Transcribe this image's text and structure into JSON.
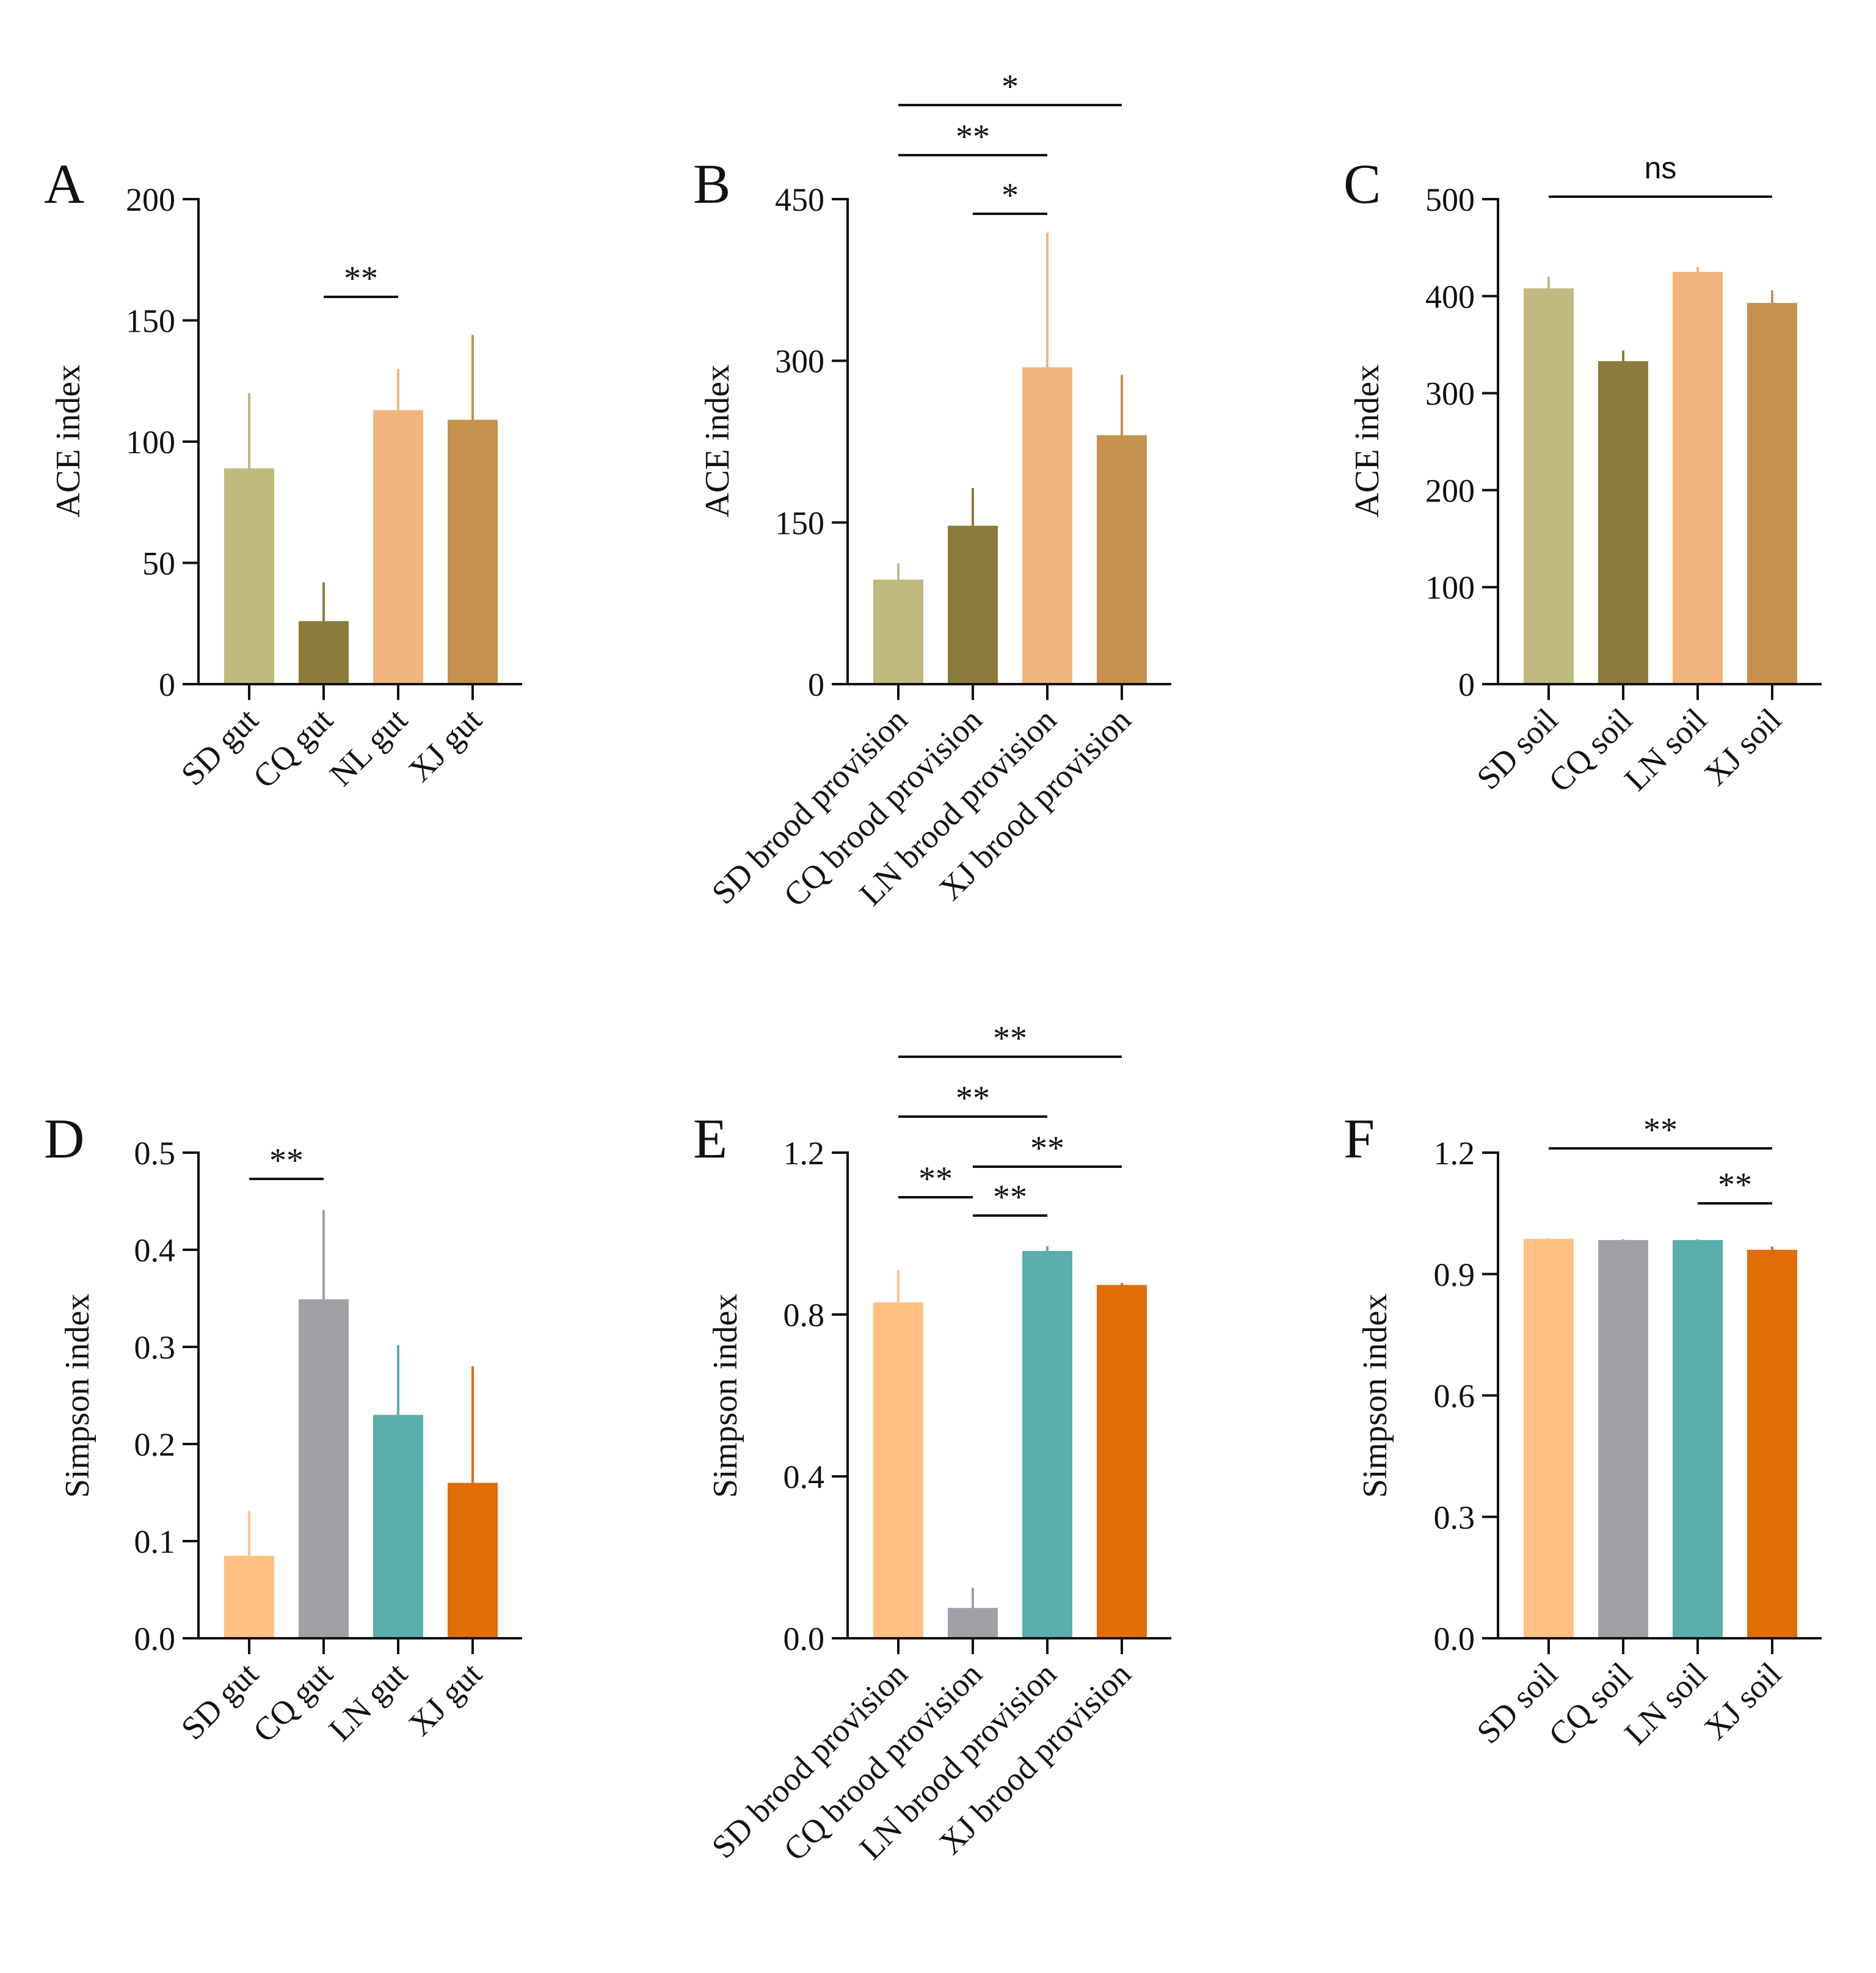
{
  "colors": {
    "acePalette": [
      "#c1b97d",
      "#8a7d3b",
      "#f2b47e",
      "#c6914e"
    ],
    "simpsonPalette": [
      "#ffc084",
      "#a1a0a4",
      "#5aaeab",
      "#e06d05"
    ],
    "axis": "#111111"
  },
  "chart_data": [
    {
      "panel": "A",
      "type": "bar",
      "ylabel": "ACE index",
      "ylim": [
        0,
        200
      ],
      "yticks": [
        0,
        50,
        100,
        150,
        200
      ],
      "tickLabels": [
        "0",
        "50",
        "100",
        "150",
        "200"
      ],
      "categories": [
        "SD gut",
        "CQ gut",
        "NL gut",
        "XJ gut"
      ],
      "values": [
        89,
        26,
        113,
        109
      ],
      "errors": [
        31,
        16,
        17,
        35
      ],
      "palette": "acePalette",
      "significance": [
        {
          "from": 1,
          "to": 2,
          "label": "**"
        }
      ]
    },
    {
      "panel": "B",
      "type": "bar",
      "ylabel": "ACE index",
      "ylim": [
        0,
        450
      ],
      "yticks": [
        0,
        150,
        300,
        450
      ],
      "tickLabels": [
        "0",
        "150",
        "300",
        "450"
      ],
      "categories": [
        "SD brood provision",
        "CQ brood provision",
        "LN brood provision",
        "XJ brood provision"
      ],
      "values": [
        97,
        147,
        294,
        231
      ],
      "errors": [
        15,
        35,
        125,
        56
      ],
      "palette": "acePalette",
      "significance": [
        {
          "from": 1,
          "to": 2,
          "label": "*"
        },
        {
          "from": 0,
          "to": 2,
          "label": "**"
        },
        {
          "from": 0,
          "to": 3,
          "label": "*"
        }
      ]
    },
    {
      "panel": "C",
      "type": "bar",
      "ylabel": "ACE index",
      "ylim": [
        0,
        500
      ],
      "yticks": [
        0,
        100,
        200,
        300,
        400,
        500
      ],
      "tickLabels": [
        "0",
        "100",
        "200",
        "300",
        "400",
        "500"
      ],
      "categories": [
        "SD soil",
        "CQ soil",
        "LN soil",
        "XJ soil"
      ],
      "values": [
        408,
        333,
        425,
        393
      ],
      "errors": [
        12,
        11,
        5,
        13
      ],
      "palette": "acePalette",
      "significance": [
        {
          "from": 0,
          "to": 3,
          "label": "ns",
          "sans": true
        }
      ]
    },
    {
      "panel": "D",
      "type": "bar",
      "ylabel": "Simpson index",
      "ylim": [
        0,
        0.5
      ],
      "yticks": [
        0,
        0.1,
        0.2,
        0.3,
        0.4,
        0.5
      ],
      "tickLabels": [
        "0.0",
        "0.1",
        "0.2",
        "0.3",
        "0.4",
        "0.5"
      ],
      "categories": [
        "SD gut",
        "CQ gut",
        "LN gut",
        "XJ gut"
      ],
      "values": [
        0.085,
        0.349,
        0.23,
        0.16
      ],
      "errors": [
        0.046,
        0.092,
        0.072,
        0.12
      ],
      "palette": "simpsonPalette",
      "significance": [
        {
          "from": 0,
          "to": 1,
          "label": "**"
        }
      ]
    },
    {
      "panel": "E",
      "type": "bar",
      "ylabel": "Simpson index",
      "ylim": [
        0,
        1.2
      ],
      "yticks": [
        0,
        0.4,
        0.8,
        1.2
      ],
      "tickLabels": [
        "0.0",
        "0.4",
        "0.8",
        "1.2"
      ],
      "categories": [
        "SD brood provision",
        "CQ brood provision",
        "LN brood provision",
        "XJ brood provision"
      ],
      "values": [
        0.83,
        0.075,
        0.957,
        0.873
      ],
      "errors": [
        0.08,
        0.05,
        0.012,
        0.005
      ],
      "palette": "simpsonPalette",
      "significance": [
        {
          "from": 0,
          "to": 1,
          "label": "**"
        },
        {
          "from": 1,
          "to": 2,
          "label": "**"
        },
        {
          "from": 1,
          "to": 3,
          "label": "**"
        },
        {
          "from": 0,
          "to": 2,
          "label": "**"
        },
        {
          "from": 0,
          "to": 3,
          "label": "**"
        }
      ]
    },
    {
      "panel": "F",
      "type": "bar",
      "ylabel": "Simpson index",
      "ylim": [
        0,
        1.2
      ],
      "yticks": [
        0,
        0.3,
        0.6,
        0.9,
        1.2
      ],
      "tickLabels": [
        "0.0",
        "0.3",
        "0.6",
        "0.9",
        "1.2"
      ],
      "categories": [
        "SD soil",
        "CQ soil",
        "LN soil",
        "XJ soil"
      ],
      "values": [
        0.987,
        0.984,
        0.984,
        0.96
      ],
      "errors": [
        0.002,
        0.002,
        0.002,
        0.008
      ],
      "palette": "simpsonPalette",
      "significance": [
        {
          "from": 2,
          "to": 3,
          "label": "**"
        },
        {
          "from": 0,
          "to": 3,
          "label": "**"
        }
      ]
    }
  ]
}
